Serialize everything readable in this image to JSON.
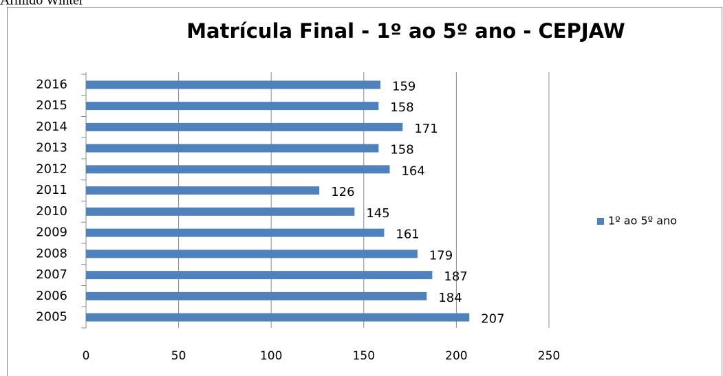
{
  "header": "Armido Winter",
  "chart_data": {
    "type": "bar",
    "orientation": "horizontal",
    "title": "Matrícula Final  - 1º ao 5º ano - CEPJAW",
    "categories": [
      "2005",
      "2006",
      "2007",
      "2008",
      "2009",
      "2010",
      "2011",
      "2012",
      "2013",
      "2014",
      "2015",
      "2016"
    ],
    "series": [
      {
        "name": "1º ao 5º ano",
        "color": "#4f81bd",
        "values": [
          207,
          184,
          187,
          179,
          161,
          145,
          126,
          164,
          158,
          171,
          158,
          159
        ]
      }
    ],
    "xlim": [
      0,
      250
    ],
    "xticks": [
      0,
      50,
      100,
      150,
      200,
      250
    ],
    "grid": true,
    "legend": "right"
  }
}
